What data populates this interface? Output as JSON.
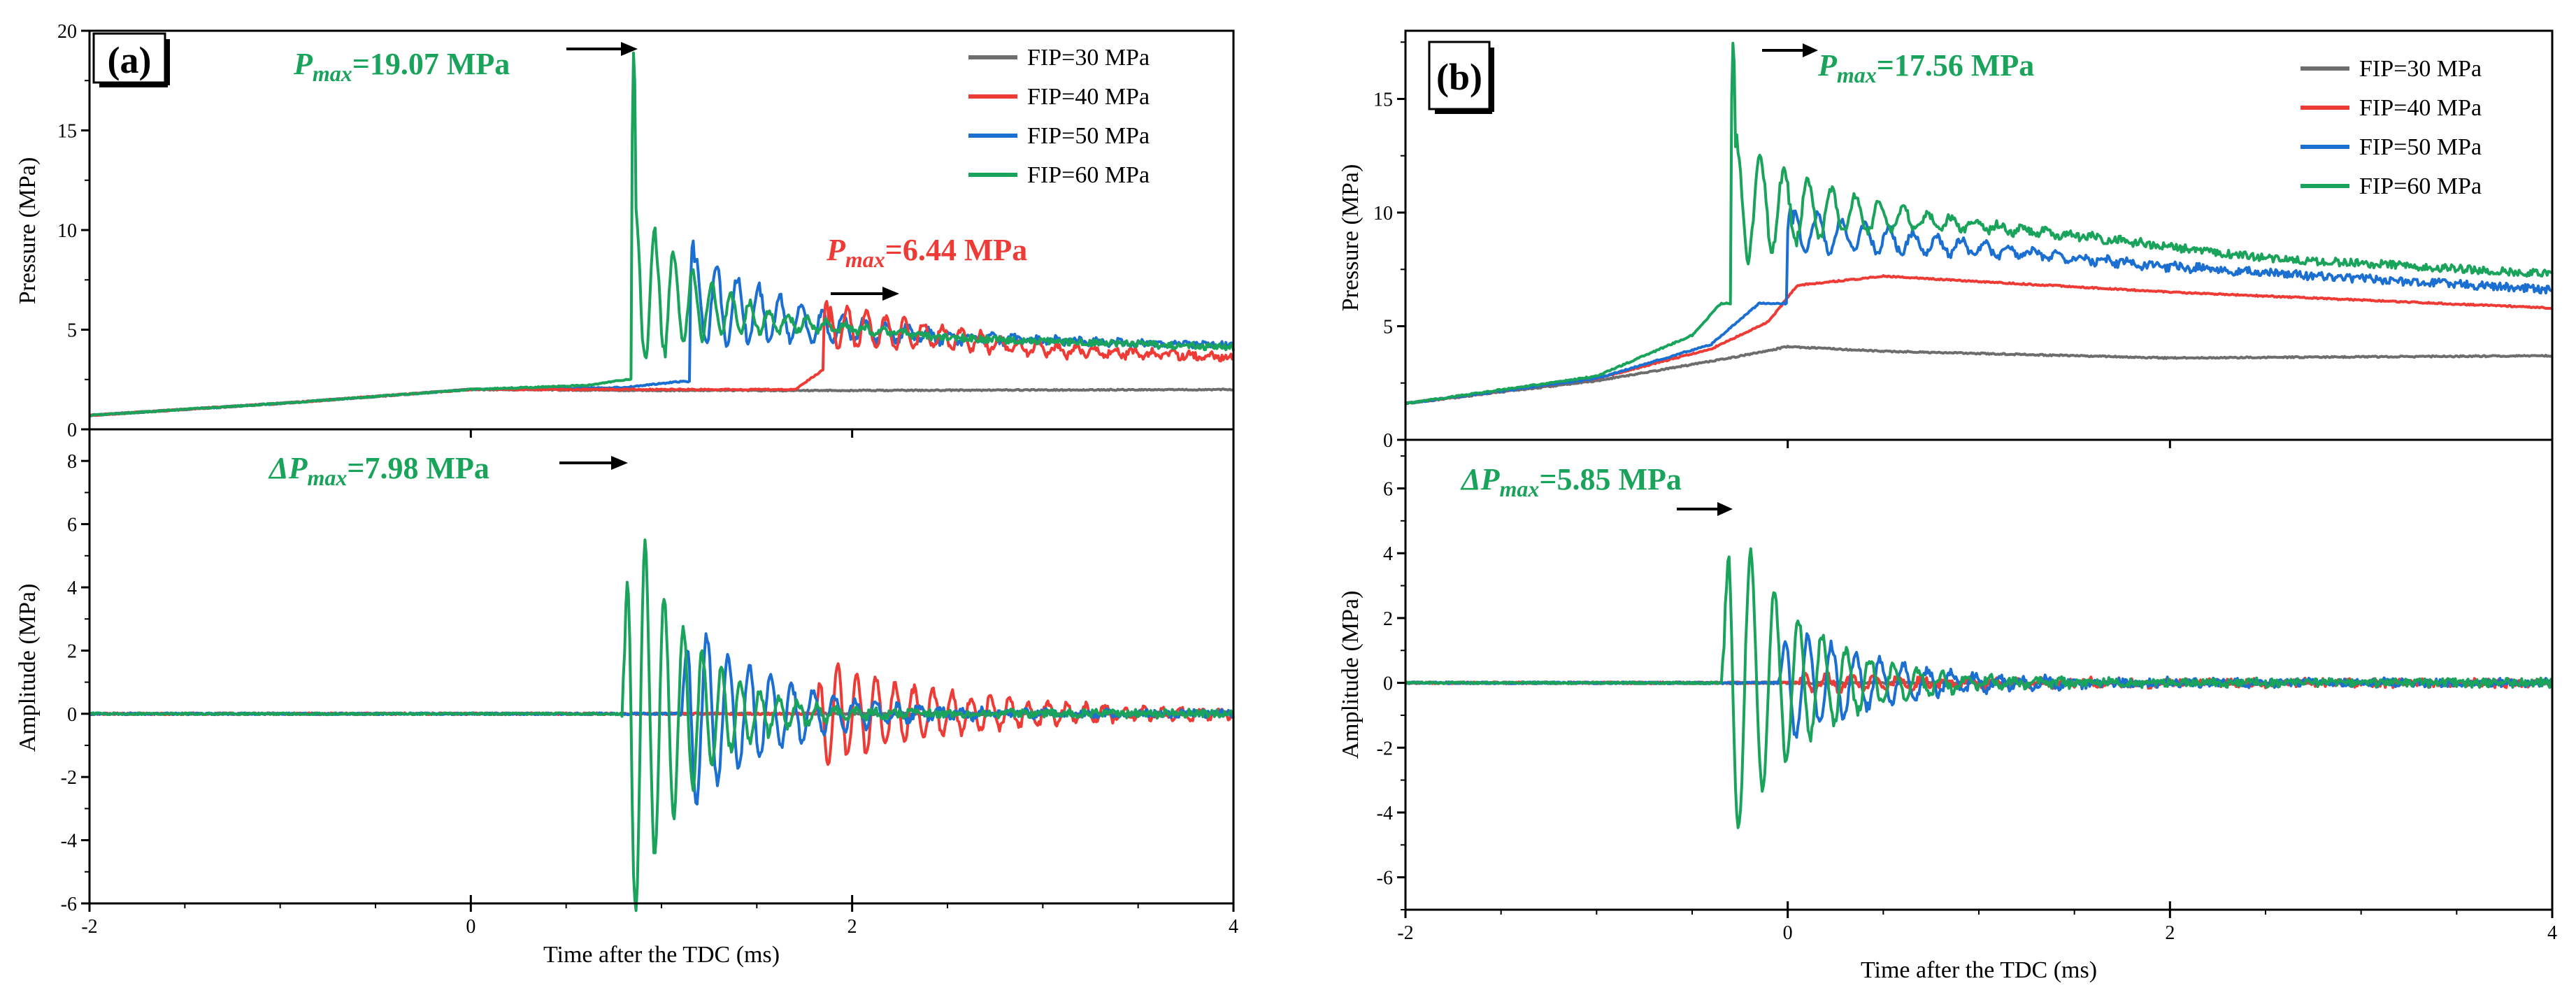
{
  "figure": {
    "panels": [
      {
        "label": "(a)",
        "xlabel": "Time after the TDC (ms)",
        "top_ylabel": "Pressure (MPa)",
        "bottom_ylabel": "Amplitude (MPa)",
        "xlim": [
          -2,
          4
        ],
        "xticks": [
          "-2",
          "0",
          "2",
          "4"
        ],
        "top_ylim": [
          0,
          20
        ],
        "top_yticks": [
          "0",
          "5",
          "10",
          "15",
          "20"
        ],
        "bottom_ylim": [
          -6,
          9
        ],
        "bottom_yticks": [
          "-6",
          "-4",
          "-2",
          "0",
          "2",
          "4",
          "6",
          "8"
        ],
        "annotations": [
          {
            "prefix": "",
            "sym": "P",
            "sub": "max",
            "value": "=19.07 MPa",
            "color": "#1aa35a"
          },
          {
            "prefix": "",
            "sym": "P",
            "sub": "max",
            "value": "=6.44 MPa",
            "color": "#ef3b36"
          },
          {
            "prefix": "Δ",
            "sym": "P",
            "sub": "max",
            "value": "=7.98 MPa",
            "color": "#1aa35a"
          }
        ]
      },
      {
        "label": "(b)",
        "xlabel": "Time after the TDC (ms)",
        "top_ylabel": "Pressure (MPa)",
        "bottom_ylabel": "Amplitude (MPa)",
        "xlim": [
          -2,
          4
        ],
        "xticks": [
          "-2",
          "0",
          "2",
          "4"
        ],
        "top_ylim": [
          0,
          18
        ],
        "top_yticks": [
          "0",
          "5",
          "10",
          "15"
        ],
        "bottom_ylim": [
          -7,
          7.5
        ],
        "bottom_yticks": [
          "-6",
          "-4",
          "-2",
          "0",
          "2",
          "4",
          "6"
        ],
        "annotations": [
          {
            "prefix": "",
            "sym": "P",
            "sub": "max",
            "value": "=17.56 MPa",
            "color": "#1aa35a"
          },
          {
            "prefix": "Δ",
            "sym": "P",
            "sub": "max",
            "value": "=5.85 MPa",
            "color": "#1aa35a"
          }
        ]
      }
    ],
    "legend": [
      {
        "label": "FIP=30 MPa",
        "color": "#6d6d6d"
      },
      {
        "label": "FIP=40 MPa",
        "color": "#ef3b36"
      },
      {
        "label": "FIP=50 MPa",
        "color": "#1a6fd1"
      },
      {
        "label": "FIP=60 MPa",
        "color": "#1aa35a"
      }
    ]
  },
  "chart_data": [
    {
      "type": "line",
      "panel": "(a)",
      "subplot": "pressure",
      "title": "",
      "xlabel": "Time after the TDC (ms)",
      "ylabel": "Pressure (MPa)",
      "xlim": [
        -2,
        4
      ],
      "ylim": [
        0,
        20
      ],
      "series": [
        {
          "name": "FIP=30 MPa",
          "color": "#6d6d6d",
          "model": "rise",
          "base": [
            [
              -2,
              0.7
            ],
            [
              -1,
              1.3
            ],
            [
              0,
              2.0
            ],
            [
              1,
              1.95
            ],
            [
              2,
              1.95
            ],
            [
              4,
              2.0
            ]
          ]
        },
        {
          "name": "FIP=40 MPa",
          "color": "#ef3b36",
          "model": "knock",
          "base": [
            [
              -2,
              0.7
            ],
            [
              -1,
              1.3
            ],
            [
              0,
              2.0
            ],
            [
              1,
              2.0
            ],
            [
              1.7,
              2.0
            ],
            [
              1.85,
              3.0
            ]
          ],
          "onset": 1.85,
          "tail": [
            [
              1.85,
              5.2
            ],
            [
              2.5,
              4.6
            ],
            [
              3,
              4.0
            ],
            [
              4,
              3.6
            ]
          ],
          "peak": 6.44,
          "osc": 1.2,
          "decay": 0.8,
          "freq": 10
        }
      ],
      "peak_note": "FIP=60 MPa Pmax=19.07 MPa at ~0.85 ms; FIP=40 MPa Pmax=6.44 MPa at ~1.9 ms"
    },
    {
      "type": "line",
      "panel": "(a)",
      "subplot": "pressure-high",
      "xlim": [
        -2,
        4
      ],
      "ylim": [
        0,
        20
      ],
      "series": [
        {
          "name": "FIP=50 MPa",
          "color": "#1a6fd1",
          "model": "knock",
          "base": [
            [
              -2,
              0.7
            ],
            [
              -1,
              1.3
            ],
            [
              0,
              2.0
            ],
            [
              0.8,
              2.1
            ],
            [
              1.1,
              2.4
            ]
          ],
          "onset": 1.15,
          "tail": [
            [
              1.15,
              6.5
            ],
            [
              1.8,
              5.2
            ],
            [
              2.5,
              4.6
            ],
            [
              4,
              4.2
            ]
          ],
          "peak": 9.5,
          "osc": 2.5,
          "decay": 0.6,
          "freq": 9
        },
        {
          "name": "FIP=60 MPa",
          "color": "#1aa35a",
          "model": "knock",
          "base": [
            [
              -2,
              0.7
            ],
            [
              -1,
              1.3
            ],
            [
              0,
              2.0
            ],
            [
              0.6,
              2.2
            ],
            [
              0.82,
              2.5
            ]
          ],
          "onset": 0.84,
          "tail": [
            [
              0.84,
              7.0
            ],
            [
              1.5,
              5.5
            ],
            [
              2.5,
              4.6
            ],
            [
              4,
              4.1
            ]
          ],
          "peak": 19.07,
          "osc": 4.5,
          "decay": 0.35,
          "freq": 10
        }
      ]
    },
    {
      "type": "line",
      "panel": "(a)",
      "subplot": "amplitude",
      "xlabel": "Time after the TDC (ms)",
      "ylabel": "Amplitude (MPa)",
      "xlim": [
        -2,
        4
      ],
      "ylim": [
        -6,
        9
      ],
      "series": [
        {
          "name": "FIP=30 MPa",
          "color": "#6d6d6d",
          "onset": 99,
          "amp": 0,
          "decay": 1,
          "freq": 10
        },
        {
          "name": "FIP=40 MPa",
          "color": "#ef3b36",
          "onset": 1.85,
          "amp": 1.8,
          "decay": 0.7,
          "freq": 10
        },
        {
          "name": "FIP=50 MPa",
          "color": "#1a6fd1",
          "onset": 1.15,
          "amp": 3.4,
          "decay": 0.45,
          "freq": 9
        },
        {
          "name": "FIP=60 MPa",
          "color": "#1aa35a",
          "onset": 0.84,
          "amp": 7.98,
          "decay": 0.3,
          "freq": 10
        }
      ]
    },
    {
      "type": "line",
      "panel": "(b)",
      "subplot": "pressure",
      "xlabel": "Time after the TDC (ms)",
      "ylabel": "Pressure (MPa)",
      "xlim": [
        -2,
        4
      ],
      "ylim": [
        0,
        18
      ],
      "series": [
        {
          "name": "FIP=30 MPa",
          "color": "#6d6d6d",
          "model": "rise",
          "base": [
            [
              -2,
              1.6
            ],
            [
              -1,
              2.6
            ],
            [
              -0.3,
              3.6
            ],
            [
              0,
              4.1
            ],
            [
              0.5,
              3.9
            ],
            [
              2,
              3.6
            ],
            [
              4,
              3.7
            ]
          ]
        },
        {
          "name": "FIP=40 MPa",
          "color": "#ef3b36",
          "model": "rise",
          "base": [
            [
              -2,
              1.6
            ],
            [
              -1,
              2.7
            ],
            [
              -0.4,
              4.0
            ],
            [
              -0.1,
              5.2
            ],
            [
              0.05,
              6.8
            ],
            [
              0.5,
              7.2
            ],
            [
              2,
              6.5
            ],
            [
              4,
              5.8
            ]
          ]
        },
        {
          "name": "FIP=50 MPa",
          "color": "#1a6fd1",
          "model": "knock",
          "base": [
            [
              -2,
              1.6
            ],
            [
              -1,
              2.7
            ],
            [
              -0.4,
              4.2
            ],
            [
              -0.15,
              6.0
            ]
          ],
          "onset": 0.0,
          "tail": [
            [
              0.0,
              9.2
            ],
            [
              1.0,
              8.4
            ],
            [
              2,
              7.6
            ],
            [
              4,
              6.6
            ]
          ],
          "peak": 10.2,
          "osc": 1.0,
          "decay": 0.8,
          "freq": 8
        },
        {
          "name": "FIP=60 MPa",
          "color": "#1aa35a",
          "model": "knock",
          "base": [
            [
              -2,
              1.6
            ],
            [
              -1,
              2.8
            ],
            [
              -0.5,
              4.6
            ],
            [
              -0.35,
              6.0
            ]
          ],
          "onset": -0.3,
          "tail": [
            [
              -0.3,
              10.5
            ],
            [
              0.5,
              9.8
            ],
            [
              1.5,
              9.0
            ],
            [
              2.5,
              8.0
            ],
            [
              4,
              7.3
            ]
          ],
          "peak": 17.56,
          "osc": 3.0,
          "decay": 0.5,
          "freq": 8
        }
      ]
    },
    {
      "type": "line",
      "panel": "(b)",
      "subplot": "amplitude",
      "xlabel": "Time after the TDC (ms)",
      "ylabel": "Amplitude (MPa)",
      "xlim": [
        -2,
        4
      ],
      "ylim": [
        -7,
        7.5
      ],
      "series": [
        {
          "name": "FIP=30 MPa",
          "color": "#6d6d6d",
          "onset": 99,
          "amp": 0,
          "decay": 1,
          "freq": 10
        },
        {
          "name": "FIP=40 MPa",
          "color": "#ef3b36",
          "onset": 0.1,
          "amp": 0.3,
          "decay": 0.8,
          "freq": 8
        },
        {
          "name": "FIP=50 MPa",
          "color": "#1a6fd1",
          "onset": 0.0,
          "amp": 2.0,
          "decay": 0.5,
          "freq": 8
        },
        {
          "name": "FIP=60 MPa",
          "color": "#1aa35a",
          "onset": -0.3,
          "amp": 5.85,
          "decay": 0.38,
          "freq": 8
        }
      ]
    }
  ]
}
